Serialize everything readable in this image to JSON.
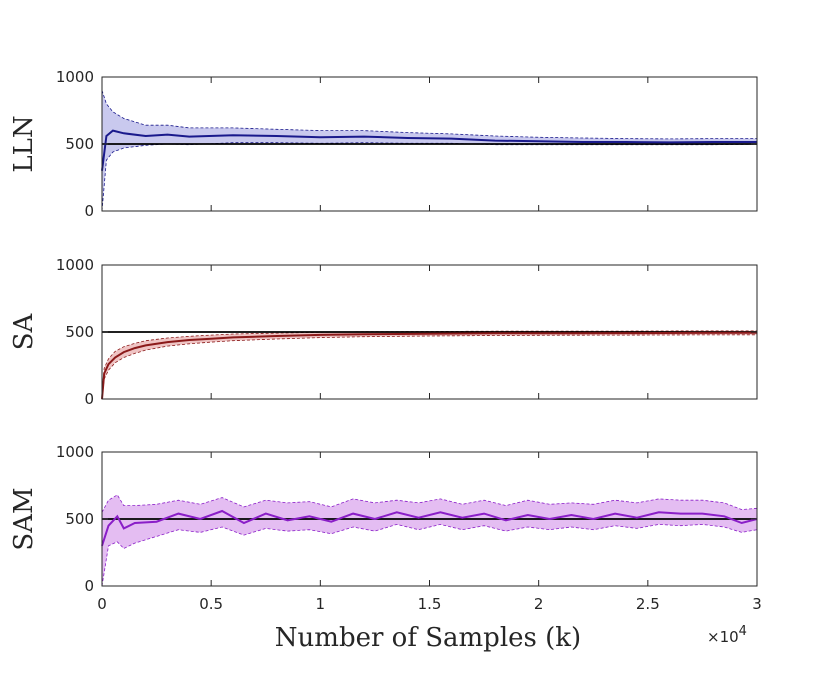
{
  "chart_data": {
    "type": "line",
    "xlabel": "Number of Samples (k)",
    "x_multiplier": {
      "prefix": "×10",
      "exponent": "4"
    },
    "xlim": [
      0,
      30000
    ],
    "x_tick_labels": [
      "0",
      "0.5",
      "1",
      "1.5",
      "2",
      "2.5",
      "3"
    ],
    "reference_value": 500,
    "panels": [
      {
        "ylabel": "LLN",
        "ylim": [
          0,
          1000
        ],
        "y_tick_labels": [
          "0",
          "500",
          "1000"
        ],
        "color": "#1a1a8c",
        "band_color": "#c9c9ee",
        "series": [
          {
            "x": 0,
            "mean": 300,
            "lower": 0,
            "upper": 900
          },
          {
            "x": 200,
            "mean": 560,
            "lower": 380,
            "upper": 800
          },
          {
            "x": 500,
            "mean": 600,
            "lower": 440,
            "upper": 740
          },
          {
            "x": 1000,
            "mean": 580,
            "lower": 470,
            "upper": 690
          },
          {
            "x": 2000,
            "mean": 560,
            "lower": 490,
            "upper": 640
          },
          {
            "x": 3000,
            "mean": 570,
            "lower": 500,
            "upper": 640
          },
          {
            "x": 4000,
            "mean": 555,
            "lower": 495,
            "upper": 620
          },
          {
            "x": 6000,
            "mean": 565,
            "lower": 510,
            "upper": 620
          },
          {
            "x": 8000,
            "mean": 560,
            "lower": 510,
            "upper": 610
          },
          {
            "x": 10000,
            "mean": 550,
            "lower": 505,
            "upper": 600
          },
          {
            "x": 12000,
            "mean": 555,
            "lower": 510,
            "upper": 600
          },
          {
            "x": 14000,
            "mean": 545,
            "lower": 505,
            "upper": 585
          },
          {
            "x": 16000,
            "mean": 540,
            "lower": 505,
            "upper": 575
          },
          {
            "x": 18000,
            "mean": 525,
            "lower": 495,
            "upper": 560
          },
          {
            "x": 20000,
            "mean": 520,
            "lower": 495,
            "upper": 550
          },
          {
            "x": 22000,
            "mean": 515,
            "lower": 495,
            "upper": 545
          },
          {
            "x": 24000,
            "mean": 515,
            "lower": 495,
            "upper": 540
          },
          {
            "x": 26000,
            "mean": 512,
            "lower": 495,
            "upper": 538
          },
          {
            "x": 28000,
            "mean": 515,
            "lower": 495,
            "upper": 540
          },
          {
            "x": 30000,
            "mean": 515,
            "lower": 498,
            "upper": 540
          }
        ]
      },
      {
        "ylabel": "SA",
        "ylim": [
          0,
          1000
        ],
        "y_tick_labels": [
          "0",
          "500",
          "1000"
        ],
        "color": "#8b1a1a",
        "band_color": "#efc4c4",
        "series": [
          {
            "x": 0,
            "mean": 0,
            "lower": 0,
            "upper": 30
          },
          {
            "x": 100,
            "mean": 190,
            "lower": 150,
            "upper": 230
          },
          {
            "x": 300,
            "mean": 260,
            "lower": 215,
            "upper": 300
          },
          {
            "x": 600,
            "mean": 310,
            "lower": 270,
            "upper": 355
          },
          {
            "x": 1000,
            "mean": 350,
            "lower": 310,
            "upper": 390
          },
          {
            "x": 1500,
            "mean": 380,
            "lower": 340,
            "upper": 415
          },
          {
            "x": 2000,
            "mean": 400,
            "lower": 365,
            "upper": 435
          },
          {
            "x": 3000,
            "mean": 425,
            "lower": 395,
            "upper": 455
          },
          {
            "x": 4000,
            "mean": 440,
            "lower": 412,
            "upper": 468
          },
          {
            "x": 5000,
            "mean": 450,
            "lower": 425,
            "upper": 477
          },
          {
            "x": 6000,
            "mean": 460,
            "lower": 435,
            "upper": 485
          },
          {
            "x": 8000,
            "mean": 470,
            "lower": 448,
            "upper": 492
          },
          {
            "x": 10000,
            "mean": 478,
            "lower": 458,
            "upper": 498
          },
          {
            "x": 12000,
            "mean": 483,
            "lower": 465,
            "upper": 502
          },
          {
            "x": 15000,
            "mean": 487,
            "lower": 470,
            "upper": 504
          },
          {
            "x": 18000,
            "mean": 490,
            "lower": 474,
            "upper": 506
          },
          {
            "x": 21000,
            "mean": 491,
            "lower": 476,
            "upper": 507
          },
          {
            "x": 24000,
            "mean": 492,
            "lower": 477,
            "upper": 507
          },
          {
            "x": 27000,
            "mean": 493,
            "lower": 478,
            "upper": 508
          },
          {
            "x": 30000,
            "mean": 494,
            "lower": 479,
            "upper": 508
          }
        ]
      },
      {
        "ylabel": "SAM",
        "ylim": [
          0,
          1000
        ],
        "y_tick_labels": [
          "0",
          "500",
          "1000"
        ],
        "color": "#8a1ec8",
        "band_color": "#e4bdf2",
        "series": [
          {
            "x": 0,
            "mean": 300,
            "lower": 0,
            "upper": 550
          },
          {
            "x": 300,
            "mean": 450,
            "lower": 300,
            "upper": 640
          },
          {
            "x": 700,
            "mean": 520,
            "lower": 330,
            "upper": 680
          },
          {
            "x": 1000,
            "mean": 430,
            "lower": 280,
            "upper": 600
          },
          {
            "x": 1500,
            "mean": 470,
            "lower": 320,
            "upper": 600
          },
          {
            "x": 2500,
            "mean": 480,
            "lower": 370,
            "upper": 610
          },
          {
            "x": 3500,
            "mean": 540,
            "lower": 420,
            "upper": 640
          },
          {
            "x": 4500,
            "mean": 500,
            "lower": 400,
            "upper": 610
          },
          {
            "x": 5500,
            "mean": 560,
            "lower": 440,
            "upper": 660
          },
          {
            "x": 6500,
            "mean": 470,
            "lower": 380,
            "upper": 590
          },
          {
            "x": 7500,
            "mean": 540,
            "lower": 430,
            "upper": 640
          },
          {
            "x": 8500,
            "mean": 490,
            "lower": 410,
            "upper": 620
          },
          {
            "x": 9500,
            "mean": 520,
            "lower": 420,
            "upper": 630
          },
          {
            "x": 10500,
            "mean": 480,
            "lower": 390,
            "upper": 590
          },
          {
            "x": 11500,
            "mean": 540,
            "lower": 440,
            "upper": 650
          },
          {
            "x": 12500,
            "mean": 500,
            "lower": 410,
            "upper": 620
          },
          {
            "x": 13500,
            "mean": 550,
            "lower": 460,
            "upper": 640
          },
          {
            "x": 14500,
            "mean": 510,
            "lower": 420,
            "upper": 620
          },
          {
            "x": 15500,
            "mean": 550,
            "lower": 460,
            "upper": 650
          },
          {
            "x": 16500,
            "mean": 510,
            "lower": 420,
            "upper": 610
          },
          {
            "x": 17500,
            "mean": 540,
            "lower": 450,
            "upper": 640
          },
          {
            "x": 18500,
            "mean": 490,
            "lower": 410,
            "upper": 600
          },
          {
            "x": 19500,
            "mean": 530,
            "lower": 440,
            "upper": 640
          },
          {
            "x": 20500,
            "mean": 500,
            "lower": 420,
            "upper": 610
          },
          {
            "x": 21500,
            "mean": 530,
            "lower": 440,
            "upper": 620
          },
          {
            "x": 22500,
            "mean": 500,
            "lower": 420,
            "upper": 610
          },
          {
            "x": 23500,
            "mean": 540,
            "lower": 450,
            "upper": 640
          },
          {
            "x": 24500,
            "mean": 510,
            "lower": 430,
            "upper": 620
          },
          {
            "x": 25500,
            "mean": 550,
            "lower": 460,
            "upper": 650
          },
          {
            "x": 26500,
            "mean": 540,
            "lower": 450,
            "upper": 640
          },
          {
            "x": 27500,
            "mean": 540,
            "lower": 460,
            "upper": 640
          },
          {
            "x": 28500,
            "mean": 520,
            "lower": 440,
            "upper": 620
          },
          {
            "x": 29300,
            "mean": 470,
            "lower": 400,
            "upper": 570
          },
          {
            "x": 30000,
            "mean": 500,
            "lower": 420,
            "upper": 580
          }
        ]
      }
    ]
  }
}
